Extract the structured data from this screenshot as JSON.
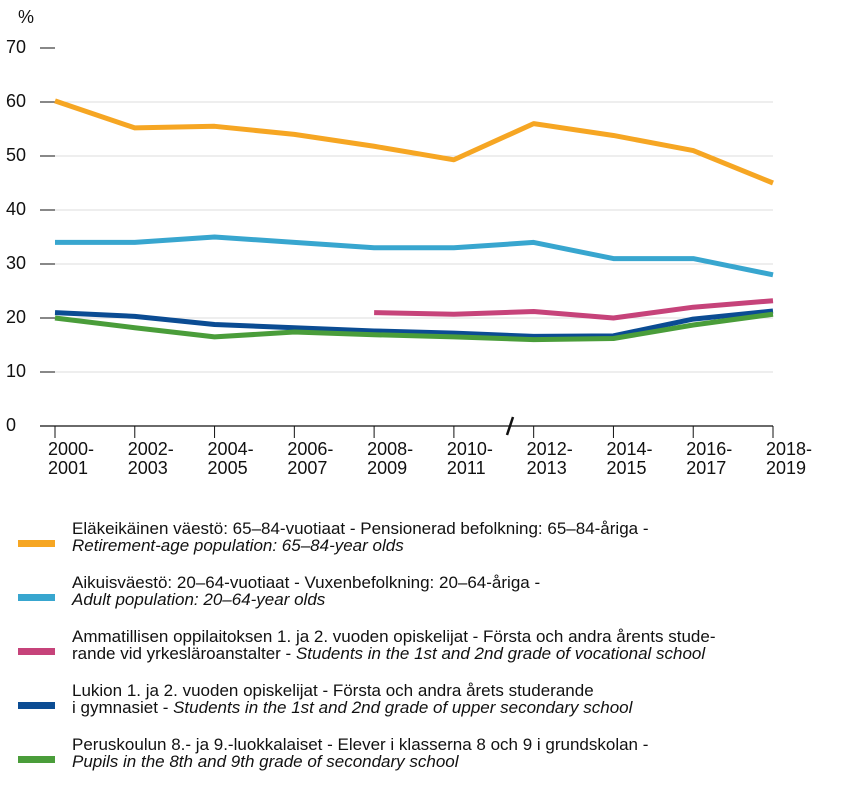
{
  "chart_data": {
    "type": "line",
    "y_label": "%",
    "categories": [
      "2000-\n2001",
      "2002-\n2003",
      "2004-\n2005",
      "2006-\n2007",
      "2008-\n2009",
      "2010-\n2011",
      "2012-\n2013",
      "2014-\n2015",
      "2016-\n2017",
      "2018-\n2019"
    ],
    "ylim": [
      0,
      70
    ],
    "yticks": [
      0,
      10,
      20,
      30,
      40,
      50,
      60,
      70
    ],
    "grid": true,
    "series": [
      {
        "name": "Eläkeikäinen väestö: 65–84-vuotiaat - Pensionerad befolkning: 65–84-åriga -\n",
        "name_en": "Retirement-age population: 65–84-year olds",
        "color": "#f6a623",
        "values": [
          60.2,
          55.2,
          55.5,
          54,
          51.8,
          49.3,
          56,
          53.8,
          51,
          45
        ]
      },
      {
        "name": "Aikuisväestö: 20–64-vuotiaat - Vuxenbefolkning: 20–64-åriga -\n",
        "name_en": "Adult population: 20–64-year olds",
        "color": "#38a6cf",
        "values": [
          34,
          34,
          35,
          34,
          33,
          33,
          34,
          31,
          31,
          28
        ]
      },
      {
        "name": "Ammatillisen oppilaitoksen 1. ja 2. vuoden opiskelijat - Första och andra årents stude-\nrande vid yrkesläroanstalter - ",
        "name_en": "Students in the 1st and 2nd grade of vocational school",
        "color": "#c6437a",
        "values": [
          null,
          null,
          null,
          null,
          21,
          20.7,
          21.2,
          20,
          22,
          23.2
        ]
      },
      {
        "name": "Lukion 1. ja 2. vuoden opiskelijat - Första och andra årets studerande\ni gymnasiet - ",
        "name_en": "Students in the 1st and 2nd grade of upper secondary school",
        "color": "#0b4c93",
        "values": [
          21,
          20.3,
          18.8,
          18.2,
          17.6,
          17.2,
          16.6,
          16.7,
          19.8,
          21.3
        ]
      },
      {
        "name": "Peruskoulun 8.- ja 9.-luokkalaiset - Elever i klasserna 8 och 9 i grundskolan -\n",
        "name_en": "Pupils in the 8th and 9th grade of secondary school",
        "color": "#4a9d3a",
        "values": [
          20,
          18.2,
          16.5,
          17.4,
          16.9,
          16.5,
          16,
          16.2,
          18.7,
          20.7
        ]
      }
    ]
  }
}
